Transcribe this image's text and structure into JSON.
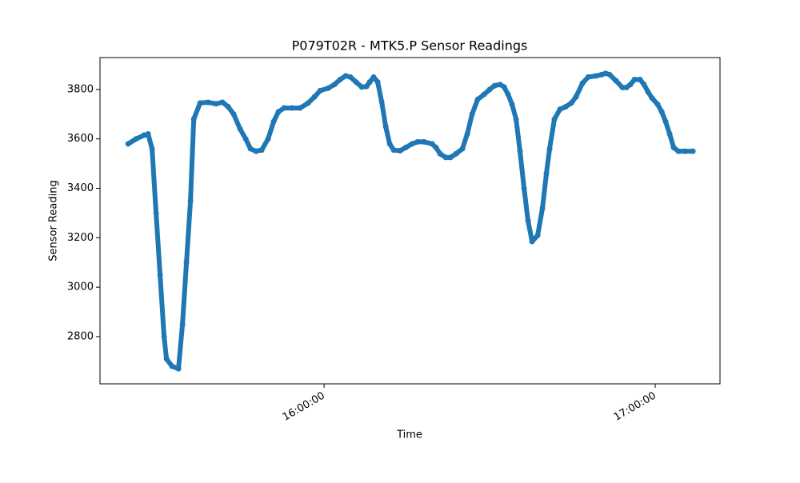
{
  "chart_data": {
    "type": "line",
    "title": "P079T02R - MTK5.P Sensor Readings",
    "x_label": "Time",
    "y_label": "Sensor Reading",
    "color": "#1f77b4",
    "markers": true,
    "grid": false,
    "x": [
      "15:24:30",
      "15:25:56",
      "15:27:23",
      "15:28:07",
      "15:28:50",
      "15:29:34",
      "15:30:17",
      "15:31:01",
      "15:31:27",
      "15:32:28",
      "15:33:37",
      "15:34:21",
      "15:35:04",
      "15:35:48",
      "15:36:23",
      "15:37:32",
      "15:38:59",
      "15:40:26",
      "15:41:36",
      "15:42:37",
      "15:43:37",
      "15:44:47",
      "15:45:48",
      "15:46:40",
      "15:47:41",
      "15:48:42",
      "15:49:51",
      "15:50:52",
      "15:51:44",
      "15:52:45",
      "15:54:12",
      "15:55:39",
      "15:57:06",
      "15:58:16",
      "15:59:17",
      "16:00:43",
      "16:01:53",
      "16:02:54",
      "16:03:55",
      "16:04:47",
      "16:05:48",
      "16:06:49",
      "16:07:41",
      "16:08:16",
      "16:08:59",
      "16:09:43",
      "16:10:26",
      "16:11:10",
      "16:11:53",
      "16:12:37",
      "16:13:46",
      "16:14:47",
      "16:15:57",
      "16:16:57",
      "16:18:07",
      "16:19:34",
      "16:20:17",
      "16:21:01",
      "16:22:02",
      "16:22:54",
      "16:23:55",
      "16:25:04",
      "16:25:57",
      "16:26:49",
      "16:27:50",
      "16:28:59",
      "16:30:00",
      "16:30:52",
      "16:31:53",
      "16:32:37",
      "16:33:20",
      "16:34:03",
      "16:34:47",
      "16:35:30",
      "16:36:14",
      "16:36:57",
      "16:37:41",
      "16:38:42",
      "16:39:34",
      "16:40:17",
      "16:40:52",
      "16:41:44",
      "16:42:45",
      "16:43:46",
      "16:44:47",
      "16:45:39",
      "16:46:49",
      "16:47:50",
      "16:49:17",
      "16:50:17",
      "16:51:01",
      "16:51:44",
      "16:52:54",
      "16:54:03",
      "16:54:47",
      "16:55:30",
      "16:56:14",
      "16:57:15",
      "16:57:58",
      "16:58:42",
      "16:59:25",
      "17:00:26",
      "17:01:10",
      "17:01:53",
      "17:02:37",
      "17:03:20",
      "17:04:12",
      "17:05:22",
      "17:06:49"
    ],
    "values": [
      3580,
      3600,
      3615,
      3620,
      3560,
      3300,
      3050,
      2800,
      2710,
      2680,
      2670,
      2850,
      3100,
      3350,
      3680,
      3745,
      3748,
      3742,
      3748,
      3730,
      3700,
      3640,
      3600,
      3560,
      3550,
      3555,
      3600,
      3670,
      3710,
      3725,
      3725,
      3725,
      3745,
      3770,
      3795,
      3805,
      3820,
      3840,
      3855,
      3850,
      3830,
      3810,
      3812,
      3830,
      3850,
      3830,
      3750,
      3650,
      3580,
      3555,
      3552,
      3565,
      3580,
      3588,
      3588,
      3580,
      3565,
      3540,
      3525,
      3525,
      3540,
      3560,
      3620,
      3700,
      3760,
      3780,
      3800,
      3815,
      3820,
      3810,
      3780,
      3740,
      3680,
      3550,
      3400,
      3270,
      3185,
      3210,
      3320,
      3460,
      3560,
      3680,
      3720,
      3730,
      3745,
      3770,
      3825,
      3850,
      3855,
      3860,
      3865,
      3860,
      3835,
      3808,
      3808,
      3820,
      3840,
      3840,
      3820,
      3790,
      3765,
      3740,
      3710,
      3670,
      3620,
      3565,
      3550,
      3550,
      3550
    ],
    "xlim": [
      "15:19:24",
      "17:11:44"
    ],
    "xticks": [
      "16:00:00",
      "17:00:00"
    ],
    "ylim": [
      2609,
      3929
    ],
    "yticks": [
      2800,
      3000,
      3200,
      3400,
      3600,
      3800
    ]
  }
}
